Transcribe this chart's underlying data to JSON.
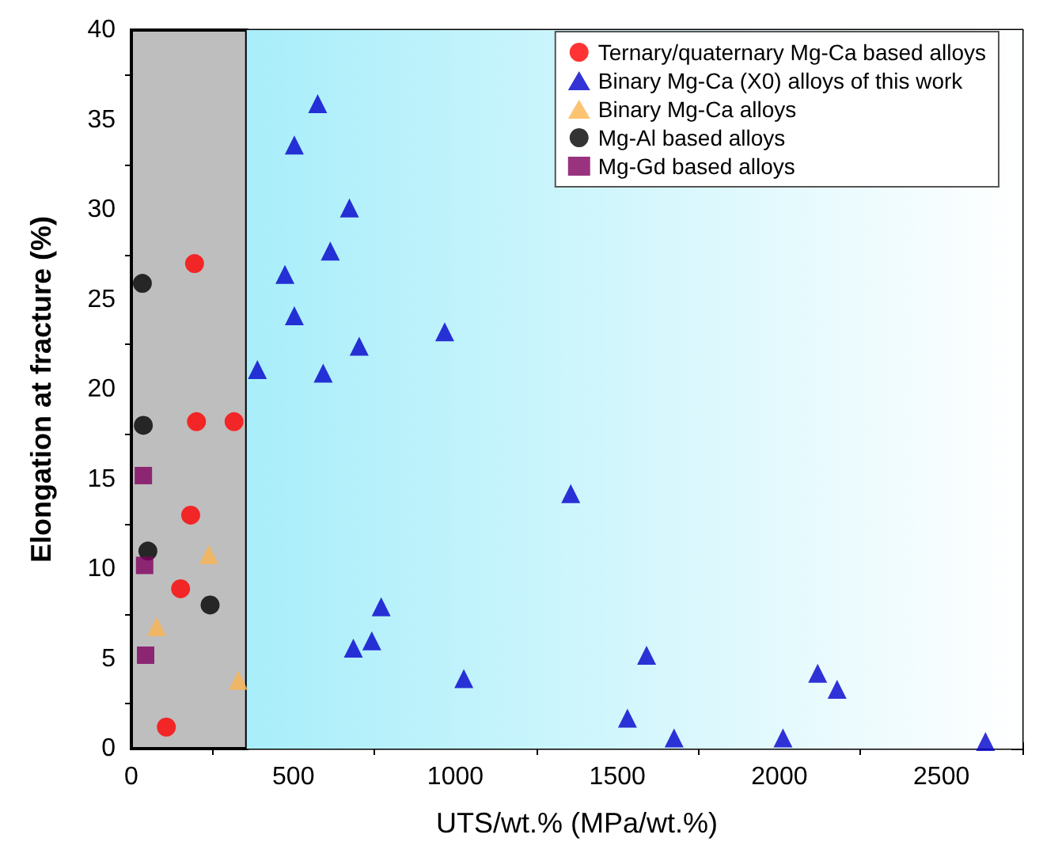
{
  "chart_data": {
    "type": "scatter",
    "xlabel": "UTS/wt.% (MPa/wt.%)",
    "ylabel": "Elongation at fracture (%)",
    "xlim": [
      0,
      2750
    ],
    "xticks": [
      0,
      500,
      1000,
      1500,
      2000,
      2500
    ],
    "ylim": [
      0,
      40
    ],
    "yticks": [
      0,
      5,
      10,
      15,
      20,
      25,
      30,
      35,
      40
    ],
    "grid": false,
    "legend": "top right",
    "bands": [
      {
        "axis": "x",
        "from": 0,
        "to": 356,
        "color": "#bebebe"
      },
      {
        "axis": "x",
        "from": 356,
        "to": 2750,
        "color": "#a8eefa"
      }
    ],
    "series": [
      {
        "name": "Ternary/quaternary Mg-Ca based alloys",
        "color": "#ff0000",
        "marker": "circle",
        "x": [
          195,
          201,
          317,
          183,
          152,
          108
        ],
        "values": [
          27.0,
          18.2,
          18.2,
          13.0,
          8.9,
          1.2
        ]
      },
      {
        "name": "Binary Mg-Ca (X0) alloys of this work",
        "color": "#0000cc",
        "marker": "triangle",
        "x": [
          575,
          503,
          673,
          614,
          474,
          503,
          967,
          703,
          389,
          592,
          1356,
          771,
          742,
          685,
          1026,
          1590,
          1531,
          1675,
          2011,
          2118,
          2178,
          2636
        ],
        "values": [
          35.9,
          33.6,
          30.1,
          27.7,
          26.4,
          24.1,
          23.2,
          22.4,
          21.1,
          20.9,
          14.2,
          7.9,
          6.0,
          5.6,
          3.9,
          5.2,
          1.7,
          0.6,
          0.6,
          4.2,
          3.3,
          0.4
        ]
      },
      {
        "name": "Binary Mg-Ca alloys",
        "color": "#fbb450",
        "marker": "triangle",
        "x": [
          239,
          78,
          330
        ],
        "values": [
          10.8,
          6.8,
          3.8
        ]
      },
      {
        "name": "Mg-Al based alloys",
        "color": "#000000",
        "marker": "circle",
        "x": [
          34,
          37,
          51,
          243
        ],
        "values": [
          25.9,
          18.0,
          11.0,
          8.0
        ]
      },
      {
        "name": "Mg-Gd based alloys",
        "color": "#800060",
        "marker": "square",
        "x": [
          37,
          41,
          44
        ],
        "values": [
          15.2,
          10.2,
          5.2
        ]
      }
    ]
  }
}
